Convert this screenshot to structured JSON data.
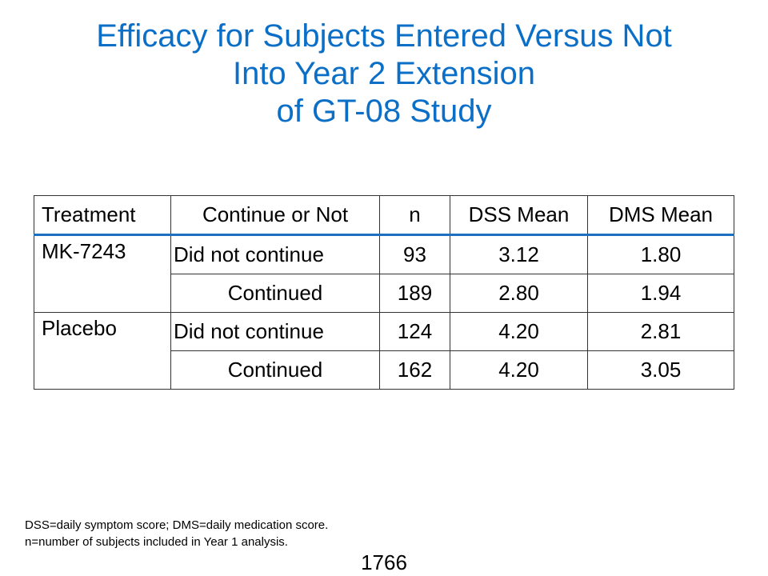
{
  "title": {
    "line1": "Efficacy for Subjects Entered Versus Not",
    "line2": "Into Year 2 Extension",
    "line3": "of GT-08 Study"
  },
  "table": {
    "headers": [
      "Treatment",
      "Continue or Not",
      "n",
      "DSS Mean",
      "DMS Mean"
    ],
    "groups": [
      {
        "treatment": "MK-7243",
        "rows": [
          {
            "status": "Did not continue",
            "n": "93",
            "dss": "3.12",
            "dms": "1.80"
          },
          {
            "status": "Continued",
            "n": "189",
            "dss": "2.80",
            "dms": "1.94"
          }
        ]
      },
      {
        "treatment": "Placebo",
        "rows": [
          {
            "status": "Did not continue",
            "n": "124",
            "dss": "4.20",
            "dms": "2.81"
          },
          {
            "status": "Continued",
            "n": "162",
            "dss": "4.20",
            "dms": "3.05"
          }
        ]
      }
    ]
  },
  "footnote": {
    "line1": "DSS=daily symptom score; DMS=daily medication score.",
    "line2": "n=number of subjects included in Year 1 analysis."
  },
  "page_number": "1766",
  "colors": {
    "title": "#0b6fc7",
    "header_rule": "#1f6fc0"
  }
}
